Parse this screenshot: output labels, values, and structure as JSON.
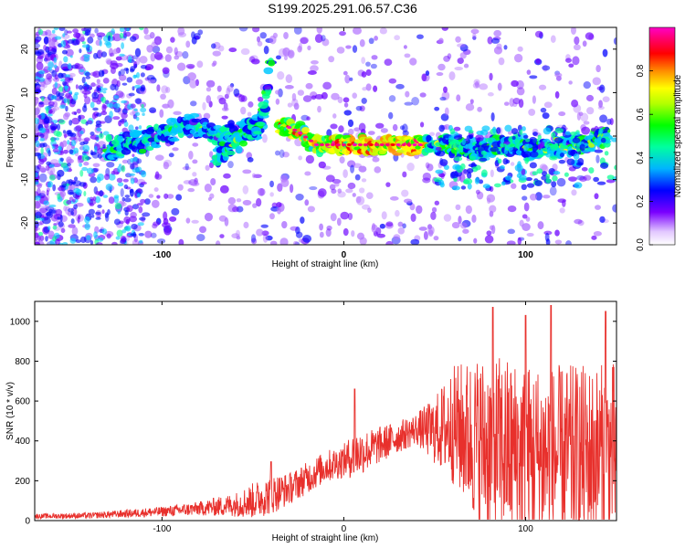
{
  "title": "S199.2025.291.06.57.C36",
  "colors": {
    "signal_line": "#e8302c",
    "frame": "#000000",
    "background": "#ffffff"
  },
  "chart_data": [
    {
      "type": "heatmap",
      "name": "spectrogram",
      "xlabel": "Height of straight line (km)",
      "ylabel": "Frequency (Hz)",
      "xlim": [
        -170,
        150
      ],
      "ylim": [
        -25,
        25
      ],
      "xticks": [
        -100,
        0,
        100
      ],
      "xtick_labels": [
        "-100",
        "0",
        "100"
      ],
      "yticks": [
        -20,
        -10,
        0,
        10,
        20
      ],
      "ytick_labels": [
        "-20",
        "-10",
        "0",
        "10",
        "20"
      ],
      "colorbar": {
        "label": "Normalized spectral amplitude",
        "range": [
          0,
          1
        ],
        "ticks": [
          0.0,
          0.2,
          0.4,
          0.6,
          0.8
        ],
        "tick_labels": [
          "0.0",
          "0.2",
          "0.4",
          "0.6",
          "0.8"
        ],
        "colormap": [
          "#e8d4ff",
          "#b070ff",
          "#6b00ff",
          "#0000ff",
          "#00c8ff",
          "#00ff90",
          "#00ff00",
          "#c8ff00",
          "#ffff00",
          "#ff9000",
          "#ff0000",
          "#ff0080",
          "#ff00c0"
        ]
      },
      "ridges": [
        {
          "name": "main-trace",
          "points": [
            [
              -130,
              -3
            ],
            [
              -110,
              -1
            ],
            [
              -95,
              1
            ],
            [
              -85,
              3
            ],
            [
              -70,
              0
            ],
            [
              -55,
              1
            ],
            [
              -45,
              2
            ]
          ]
        },
        {
          "name": "descending-branch",
          "points": [
            [
              -70,
              -5
            ],
            [
              -60,
              -2
            ],
            [
              -48,
              2
            ],
            [
              -42,
              10
            ],
            [
              -40,
              20
            ]
          ]
        },
        {
          "name": "central-trace",
          "points": [
            [
              -35,
              3
            ],
            [
              -25,
              1
            ],
            [
              -15,
              -2
            ],
            [
              0,
              -2
            ],
            [
              20,
              -2
            ],
            [
              40,
              -2
            ],
            [
              55,
              -2
            ],
            [
              70,
              -3
            ],
            [
              90,
              -2
            ],
            [
              110,
              -3
            ],
            [
              130,
              -2
            ],
            [
              145,
              0
            ]
          ]
        }
      ]
    },
    {
      "type": "line",
      "name": "snr",
      "xlabel": "Height of straight line (km)",
      "ylabel": "SNR (10 * v/v)",
      "xlim": [
        -170,
        150
      ],
      "ylim": [
        0,
        1100
      ],
      "xticks": [
        -100,
        0,
        100
      ],
      "xtick_labels": [
        "-100",
        "0",
        "100"
      ],
      "yticks": [
        0,
        200,
        400,
        600,
        800,
        1000
      ],
      "ytick_labels": [
        "0",
        "200",
        "400",
        "600",
        "800",
        "1000"
      ],
      "series": [
        {
          "name": "SNR",
          "color": "#e8302c",
          "envelope_x": [
            -170,
            -140,
            -100,
            -80,
            -60,
            -50,
            -40,
            -30,
            -20,
            -10,
            0,
            6,
            15,
            30,
            40,
            50,
            60,
            70,
            80,
            100,
            120,
            140,
            150
          ],
          "envelope_mean": [
            22,
            25,
            45,
            60,
            80,
            100,
            130,
            160,
            215,
            270,
            300,
            330,
            360,
            420,
            460,
            450,
            480,
            420,
            380,
            330,
            320,
            330,
            340
          ],
          "envelope_spread": [
            12,
            15,
            25,
            35,
            60,
            90,
            100,
            80,
            80,
            80,
            85,
            120,
            100,
            80,
            80,
            170,
            300,
            400,
            470,
            470,
            460,
            460,
            460
          ],
          "peaks": [
            [
              -40,
              295
            ],
            [
              6,
              660
            ],
            [
              82,
              1070
            ],
            [
              100,
              1030
            ],
            [
              114,
              1080
            ],
            [
              144,
              1050
            ]
          ]
        }
      ]
    }
  ]
}
